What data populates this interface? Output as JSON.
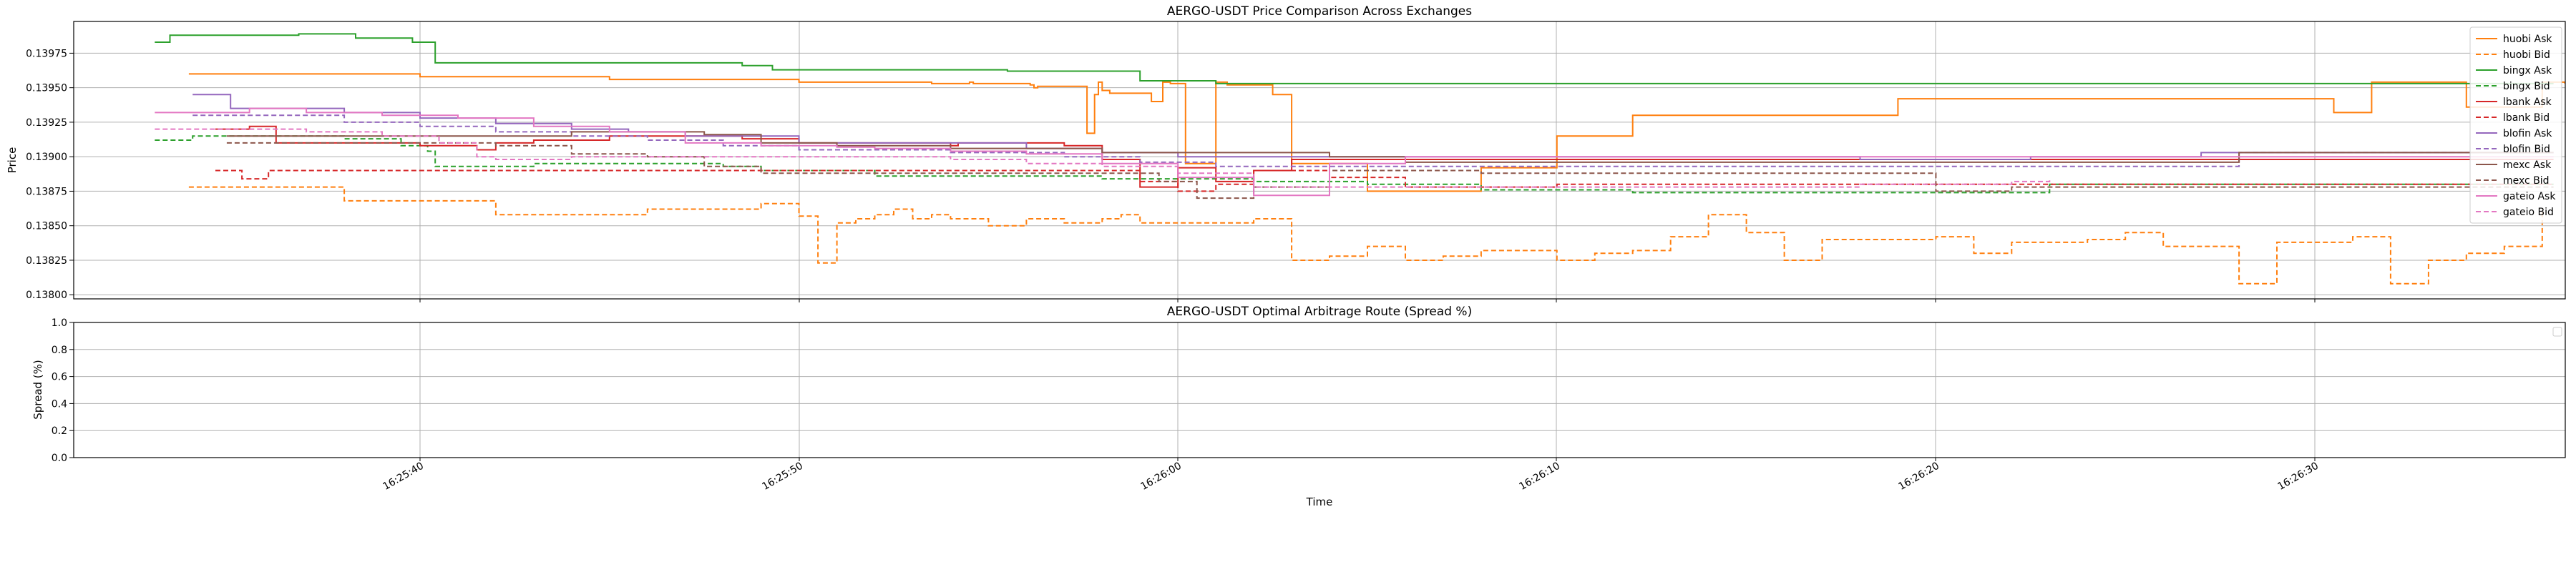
{
  "chart_data": [
    {
      "type": "line",
      "title": "AERGO-USDT Price Comparison Across Exchanges",
      "xlabel": "Time",
      "ylabel": "Price",
      "x_ticks": [
        "16:25:40",
        "16:25:50",
        "16:26:00",
        "16:26:10",
        "16:26:20",
        "16:26:30"
      ],
      "y_ticks": [
        "0.13800",
        "0.13825",
        "0.13850",
        "0.13875",
        "0.13900",
        "0.13925",
        "0.13950",
        "0.13975"
      ],
      "ylim": [
        0.13797,
        0.13998
      ],
      "grid": true,
      "legend": "upper-right",
      "x_units": "seconds after 16:25:30",
      "series": [
        {
          "name": "huobi Ask",
          "color": "#ff7f0e",
          "dash": "solid",
          "x": [
            3.9,
            10,
            15,
            20,
            23.5,
            24.3,
            24.5,
            24.6,
            25.4,
            25.7,
            26.1,
            26.2,
            26.3,
            26.6,
            27.6,
            27.8,
            27.9,
            28.0,
            28.2,
            28.4,
            28.7,
            28.9,
            29.0,
            29.3,
            29.6,
            29.8,
            30.2,
            31.0,
            31.3,
            31.6,
            32.0,
            32.5,
            33.0,
            35.0,
            38.0,
            40.0,
            42.0,
            49.0,
            50.0,
            50.5,
            51.0,
            51.5,
            52.0,
            52.5,
            53.0,
            53.5,
            54.0,
            55.0,
            56.0,
            57.0,
            57.5,
            58.0,
            58.6,
            60.0,
            60.5,
            61.0,
            61.5,
            62.0,
            64.0,
            65.0,
            66.0,
            66.3,
            66.6
          ],
          "y": [
            0.1396,
            0.13958,
            0.13956,
            0.13954,
            0.13953,
            0.13953,
            0.13954,
            0.13953,
            0.13953,
            0.13953,
            0.13952,
            0.1395,
            0.13951,
            0.13951,
            0.13917,
            0.13945,
            0.13954,
            0.13948,
            0.13946,
            0.13946,
            0.13946,
            0.13946,
            0.13946,
            0.1394,
            0.13954,
            0.13953,
            0.13895,
            0.13954,
            0.13952,
            0.13952,
            0.13952,
            0.13945,
            0.13895,
            0.13875,
            0.13892,
            0.13915,
            0.1393,
            0.13942,
            0.13942,
            0.13942,
            0.13942,
            0.13942,
            0.13942,
            0.13942,
            0.13942,
            0.13942,
            0.13942,
            0.13942,
            0.13942,
            0.13942,
            0.13942,
            0.13942,
            0.13942,
            0.13942,
            0.13932,
            0.13932,
            0.13954,
            0.13954,
            0.13936,
            0.13936,
            0.13954,
            0.13954,
            0.13953
          ]
        },
        {
          "name": "huobi Bid",
          "color": "#ff7f0e",
          "dash": "dashed",
          "x": [
            3.9,
            8,
            12,
            16,
            19,
            20,
            20.5,
            21,
            21.5,
            22,
            22.5,
            23,
            23.5,
            24,
            25,
            26,
            27,
            28,
            28.5,
            29,
            30,
            31,
            32,
            33,
            34,
            35,
            36,
            37,
            38,
            39,
            40,
            41,
            42,
            43,
            44,
            45,
            46,
            47,
            48,
            49,
            50,
            51,
            52,
            53,
            54,
            55,
            56,
            57,
            58,
            59,
            60,
            61,
            62,
            63,
            64,
            65,
            66
          ],
          "y": [
            0.13878,
            0.13868,
            0.13858,
            0.13862,
            0.13866,
            0.13857,
            0.13823,
            0.13852,
            0.13855,
            0.13858,
            0.13862,
            0.13855,
            0.13858,
            0.13855,
            0.1385,
            0.13855,
            0.13852,
            0.13855,
            0.13858,
            0.13852,
            0.13852,
            0.13852,
            0.13855,
            0.13825,
            0.13828,
            0.13835,
            0.13825,
            0.13828,
            0.13832,
            0.13832,
            0.13825,
            0.1383,
            0.13832,
            0.13842,
            0.13858,
            0.13845,
            0.13825,
            0.1384,
            0.1384,
            0.1384,
            0.13842,
            0.1383,
            0.13838,
            0.13838,
            0.1384,
            0.13845,
            0.13835,
            0.13835,
            0.13808,
            0.13838,
            0.13838,
            0.13842,
            0.13808,
            0.13825,
            0.1383,
            0.13835,
            0.13862
          ]
        },
        {
          "name": "bingx Ask",
          "color": "#2ca02c",
          "dash": "solid",
          "x": [
            3.0,
            3.4,
            5.4,
            6.8,
            8.3,
            9.8,
            10.4,
            10.4,
            13.5,
            16.5,
            18.5,
            19.3,
            22.0,
            24.5,
            25.5,
            26.5,
            27.5,
            28.0,
            29.0,
            31.0,
            34.0,
            37.0,
            40.0,
            43.0,
            46.0,
            49.0,
            52.0,
            55.0,
            58.0,
            61.0,
            64.0,
            66.3
          ],
          "y": [
            0.13983,
            0.13988,
            0.13988,
            0.13989,
            0.13986,
            0.13983,
            0.1398,
            0.13968,
            0.13968,
            0.13968,
            0.13966,
            0.13963,
            0.13963,
            0.13963,
            0.13962,
            0.13962,
            0.13962,
            0.13962,
            0.13955,
            0.13953,
            0.13953,
            0.13953,
            0.13953,
            0.13953,
            0.13953,
            0.13953,
            0.13953,
            0.13953,
            0.13953,
            0.13953,
            0.13953,
            0.13953
          ]
        },
        {
          "name": "bingx Bid",
          "color": "#2ca02c",
          "dash": "dashed",
          "x": [
            3.0,
            4.0,
            6.0,
            8.0,
            9.5,
            10.2,
            10.4,
            11.5,
            13.0,
            16.0,
            17.0,
            18.0,
            19.0,
            22.0,
            25.0,
            27.0,
            28.0,
            30.0,
            32.0,
            35.0,
            38.0,
            42.0,
            46.0,
            49.0,
            50.0,
            52.0,
            53.0,
            55.0,
            58.0,
            61.0,
            64.0,
            66.3
          ],
          "y": [
            0.13912,
            0.13915,
            0.13915,
            0.13913,
            0.13908,
            0.13904,
            0.13893,
            0.13893,
            0.13895,
            0.13895,
            0.13895,
            0.13893,
            0.1389,
            0.13886,
            0.13886,
            0.13886,
            0.13884,
            0.13884,
            0.13882,
            0.1388,
            0.13876,
            0.13874,
            0.13874,
            0.13874,
            0.13874,
            0.13874,
            0.1388,
            0.1388,
            0.1388,
            0.1388,
            0.1388,
            0.1388
          ]
        },
        {
          "name": "lbank Ask",
          "color": "#d62728",
          "dash": "solid",
          "x": [
            4.6,
            4.9,
            5.5,
            6.2,
            8.5,
            10.0,
            11.5,
            12.0,
            12.5,
            13.0,
            15.0,
            16.0,
            17.5,
            18.5,
            20.0,
            21.5,
            22.5,
            23.0,
            24.0,
            24.2,
            25.0,
            27.0,
            28.0,
            29.0,
            30.0,
            31.0,
            32.0,
            33.0,
            34.0,
            35.0,
            36.0,
            38.0,
            40.0,
            42.0,
            44.0,
            46.0,
            48.0,
            50.0,
            52.0,
            54.0,
            56.0,
            58.0,
            60.0,
            62.0,
            64.0,
            66.3
          ],
          "y": [
            0.1392,
            0.1392,
            0.13922,
            0.1391,
            0.1391,
            0.13908,
            0.13905,
            0.1391,
            0.1391,
            0.13912,
            0.13915,
            0.13915,
            0.13915,
            0.13913,
            0.1391,
            0.1391,
            0.1391,
            0.1391,
            0.13908,
            0.1391,
            0.1391,
            0.13908,
            0.13898,
            0.13878,
            0.13892,
            0.13882,
            0.1389,
            0.13898,
            0.13898,
            0.13898,
            0.13898,
            0.13898,
            0.13898,
            0.13898,
            0.13898,
            0.13898,
            0.13898,
            0.13898,
            0.13898,
            0.13898,
            0.13898,
            0.13898,
            0.13898,
            0.13898,
            0.13898,
            0.13898
          ]
        },
        {
          "name": "lbank Bid",
          "color": "#d62728",
          "dash": "dashed",
          "x": [
            4.6,
            4.9,
            5.3,
            6.0,
            8.5,
            10.0,
            12.0,
            14.0,
            17.0,
            20.0,
            23.0,
            26.0,
            28.0,
            29.0,
            30.0,
            31.0,
            32.0,
            34.0,
            36.0,
            38.0,
            40.0,
            42.0,
            44.0,
            46.0,
            48.0,
            50.0,
            52.0,
            54.0,
            56.0,
            58.0,
            60.0,
            62.0,
            64.0,
            66.3
          ],
          "y": [
            0.1389,
            0.1389,
            0.13884,
            0.1389,
            0.1389,
            0.1389,
            0.1389,
            0.1389,
            0.1389,
            0.1389,
            0.1389,
            0.1389,
            0.1389,
            0.13882,
            0.13875,
            0.1388,
            0.1389,
            0.13885,
            0.13878,
            0.13878,
            0.1388,
            0.1388,
            0.1388,
            0.1388,
            0.1388,
            0.1388,
            0.1388,
            0.1388,
            0.1388,
            0.1388,
            0.1388,
            0.1388,
            0.1388,
            0.1388
          ]
        },
        {
          "name": "blofin Ask",
          "color": "#9467bd",
          "dash": "solid",
          "x": [
            4.0,
            5.0,
            6.5,
            8.0,
            10.0,
            12.0,
            14.0,
            15.5,
            17.0,
            20.0,
            23.0,
            26.0,
            28.0,
            30.0,
            33.0,
            36.0,
            39.0,
            42.0,
            45.0,
            48.0,
            51.0,
            52.5,
            54.0,
            57.0,
            60.0,
            63.0,
            66.3
          ],
          "y": [
            0.13945,
            0.13935,
            0.13935,
            0.13932,
            0.13928,
            0.13924,
            0.1392,
            0.13918,
            0.13915,
            0.1391,
            0.1391,
            0.13906,
            0.13903,
            0.139,
            0.139,
            0.139,
            0.139,
            0.139,
            0.139,
            0.13898,
            0.13898,
            0.139,
            0.139,
            0.13903,
            0.13903,
            0.13903,
            0.13903
          ]
        },
        {
          "name": "blofin Bid",
          "color": "#9467bd",
          "dash": "dashed",
          "x": [
            4.0,
            6.0,
            8.0,
            10.0,
            12.0,
            14.0,
            16.0,
            18.0,
            20.0,
            24.0,
            27.0,
            29.0,
            31.0,
            34.0,
            38.0,
            42.0,
            46.0,
            50.0,
            52.0,
            55.0,
            58.0,
            62.0,
            66.3
          ],
          "y": [
            0.1393,
            0.1393,
            0.13925,
            0.13922,
            0.13918,
            0.13915,
            0.13912,
            0.13908,
            0.13905,
            0.13903,
            0.139,
            0.13896,
            0.13893,
            0.13893,
            0.13893,
            0.13893,
            0.13893,
            0.13893,
            0.13893,
            0.13893,
            0.13903,
            0.13903,
            0.13903
          ]
        },
        {
          "name": "mexc Ask",
          "color": "#8c564b",
          "dash": "solid",
          "x": [
            4.9,
            6.0,
            8.0,
            10.0,
            12.5,
            14.0,
            16.0,
            17.5,
            19.0,
            21.0,
            24.0,
            26.0,
            28.0,
            29.0,
            30.0,
            32.0,
            34.0,
            36.0,
            40.0,
            44.0,
            48.0,
            52.0,
            56.0,
            58.0,
            60.0,
            63.0,
            66.3
          ],
          "y": [
            0.13915,
            0.13915,
            0.13915,
            0.13915,
            0.13915,
            0.13918,
            0.13918,
            0.13916,
            0.1391,
            0.13908,
            0.13906,
            0.13906,
            0.13903,
            0.13903,
            0.13903,
            0.13903,
            0.139,
            0.13896,
            0.13896,
            0.13896,
            0.13896,
            0.13896,
            0.13896,
            0.13903,
            0.13903,
            0.13903,
            0.13903
          ]
        },
        {
          "name": "mexc Bid",
          "color": "#8c564b",
          "dash": "dashed",
          "x": [
            4.9,
            6.0,
            8.0,
            10.0,
            12.0,
            14.0,
            16.0,
            17.5,
            19.0,
            21.0,
            24.0,
            26.0,
            28.0,
            29.5,
            30.5,
            32.0,
            34.0,
            36.0,
            38.0,
            40.0,
            42.0,
            44.0,
            46.0,
            48.0,
            50.0,
            52.0,
            54.0,
            56.0,
            58.0,
            60.0,
            62.0,
            64.0,
            66.3
          ],
          "y": [
            0.1391,
            0.1391,
            0.1391,
            0.1391,
            0.13908,
            0.13902,
            0.139,
            0.13893,
            0.13888,
            0.13888,
            0.13888,
            0.13888,
            0.13888,
            0.13882,
            0.1387,
            0.13878,
            0.1389,
            0.1389,
            0.13888,
            0.13888,
            0.13888,
            0.13888,
            0.13888,
            0.13888,
            0.13875,
            0.13878,
            0.13878,
            0.13878,
            0.13878,
            0.13878,
            0.13878,
            0.13878,
            0.13878
          ]
        },
        {
          "name": "gateio Ask",
          "color": "#e377c2",
          "dash": "solid",
          "x": [
            3.0,
            5.5,
            7.0,
            9.0,
            11.0,
            13.0,
            15.0,
            17.0,
            19.0,
            20.0,
            21.0,
            22.0,
            24.0,
            26.0,
            28.0,
            30.0,
            32.0,
            34.0,
            36.0,
            38.0,
            40.0,
            42.0,
            45.0,
            48.0,
            50.0,
            52.0,
            54.0,
            56.0,
            58.0,
            60.0,
            62.0,
            64.0,
            66.3
          ],
          "y": [
            0.13932,
            0.13935,
            0.13932,
            0.1393,
            0.13928,
            0.13922,
            0.13918,
            0.1391,
            0.13908,
            0.13908,
            0.13907,
            0.13906,
            0.13904,
            0.13902,
            0.13895,
            0.13885,
            0.13872,
            0.13895,
            0.139,
            0.139,
            0.139,
            0.139,
            0.139,
            0.139,
            0.139,
            0.139,
            0.139,
            0.139,
            0.139,
            0.139,
            0.139,
            0.139,
            0.139
          ]
        },
        {
          "name": "gateio Bid",
          "color": "#e377c2",
          "dash": "dashed",
          "x": [
            3.0,
            5.0,
            7.0,
            9.0,
            10.5,
            11.5,
            12.0,
            13.0,
            14.0,
            16.0,
            18.0,
            20.0,
            22.0,
            24.0,
            26.0,
            28.0,
            30.0,
            32.0,
            34.0,
            36.0,
            38.0,
            40.0,
            42.0,
            44.0,
            46.0,
            48.0,
            50.0,
            52.0,
            53.0
          ],
          "y": [
            0.1392,
            0.1392,
            0.13918,
            0.13915,
            0.1391,
            0.139,
            0.13898,
            0.13898,
            0.139,
            0.139,
            0.139,
            0.139,
            0.139,
            0.13898,
            0.13895,
            0.13893,
            0.13888,
            0.13878,
            0.13878,
            0.13878,
            0.13878,
            0.13878,
            0.13878,
            0.13878,
            0.13878,
            0.1388,
            0.1388,
            0.13882,
            0.13884
          ]
        }
      ]
    },
    {
      "type": "line",
      "title": "AERGO-USDT Optimal Arbitrage Route (Spread %)",
      "xlabel": "Time",
      "ylabel": "Spread (%)",
      "x_ticks": [
        "16:25:40",
        "16:25:50",
        "16:26:00",
        "16:26:10",
        "16:26:20",
        "16:26:30"
      ],
      "y_ticks": [
        "0.0",
        "0.2",
        "0.4",
        "0.6",
        "0.8",
        "1.0"
      ],
      "ylim": [
        0,
        1
      ],
      "grid": true,
      "legend": "upper-right",
      "series": []
    }
  ]
}
